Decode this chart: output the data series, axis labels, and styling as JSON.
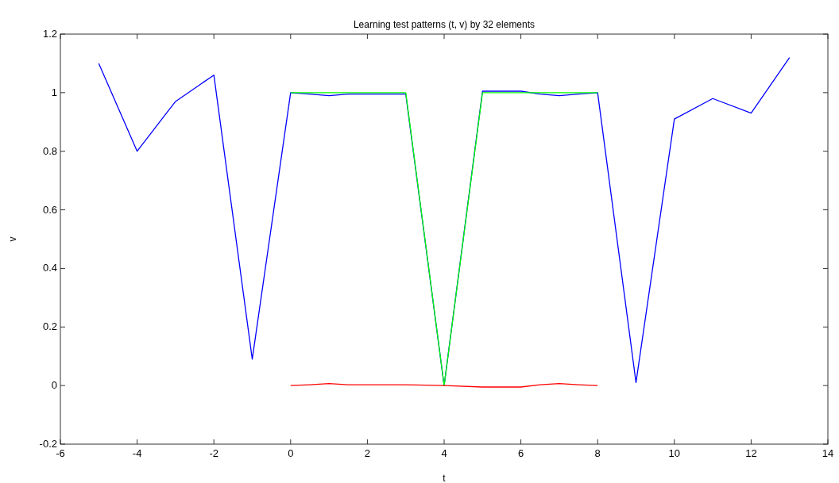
{
  "chart_data": {
    "type": "line",
    "title": "Learning test patterns (t, v) by 32 elements",
    "xlabel": "t",
    "ylabel": "v",
    "xlim": [
      -6,
      14
    ],
    "xticks": [
      -6,
      -4,
      -2,
      0,
      2,
      4,
      6,
      8,
      10,
      12,
      14
    ],
    "ylim": [
      -0.2,
      1.2
    ],
    "yticks": [
      -0.2,
      0,
      0.2,
      0.4,
      0.6,
      0.8,
      1,
      1.2
    ],
    "grid": false,
    "marker": "none",
    "line_style": "solid",
    "series": [
      {
        "color": "#0000ff",
        "x": [
          -5,
          -4,
          -3,
          -2,
          -1,
          0,
          0.5,
          1,
          1.5,
          2,
          3,
          4,
          5,
          6,
          6.5,
          7,
          7.5,
          8,
          9,
          10,
          11,
          12,
          13
        ],
        "values": [
          1.1,
          0.8,
          0.97,
          1.06,
          0.09,
          1.0,
          0.995,
          0.99,
          0.995,
          0.995,
          0.995,
          0.0,
          1.005,
          1.005,
          0.995,
          0.99,
          0.995,
          1.0,
          0.01,
          0.91,
          0.98,
          0.93,
          1.12
        ]
      },
      {
        "color": "#00ff00",
        "x": [
          0,
          1,
          2,
          3,
          4,
          5,
          6,
          7,
          8
        ],
        "values": [
          1,
          1,
          1,
          1,
          0,
          1,
          1,
          1,
          1
        ]
      },
      {
        "color": "#ff0000",
        "x": [
          0,
          0.5,
          1,
          1.5,
          2,
          3,
          4,
          5,
          6,
          6.5,
          7,
          7.5,
          8
        ],
        "values": [
          0,
          0.003,
          0.007,
          0.003,
          0.003,
          0.003,
          0,
          -0.005,
          -0.005,
          0.003,
          0.007,
          0.003,
          0
        ]
      }
    ]
  }
}
